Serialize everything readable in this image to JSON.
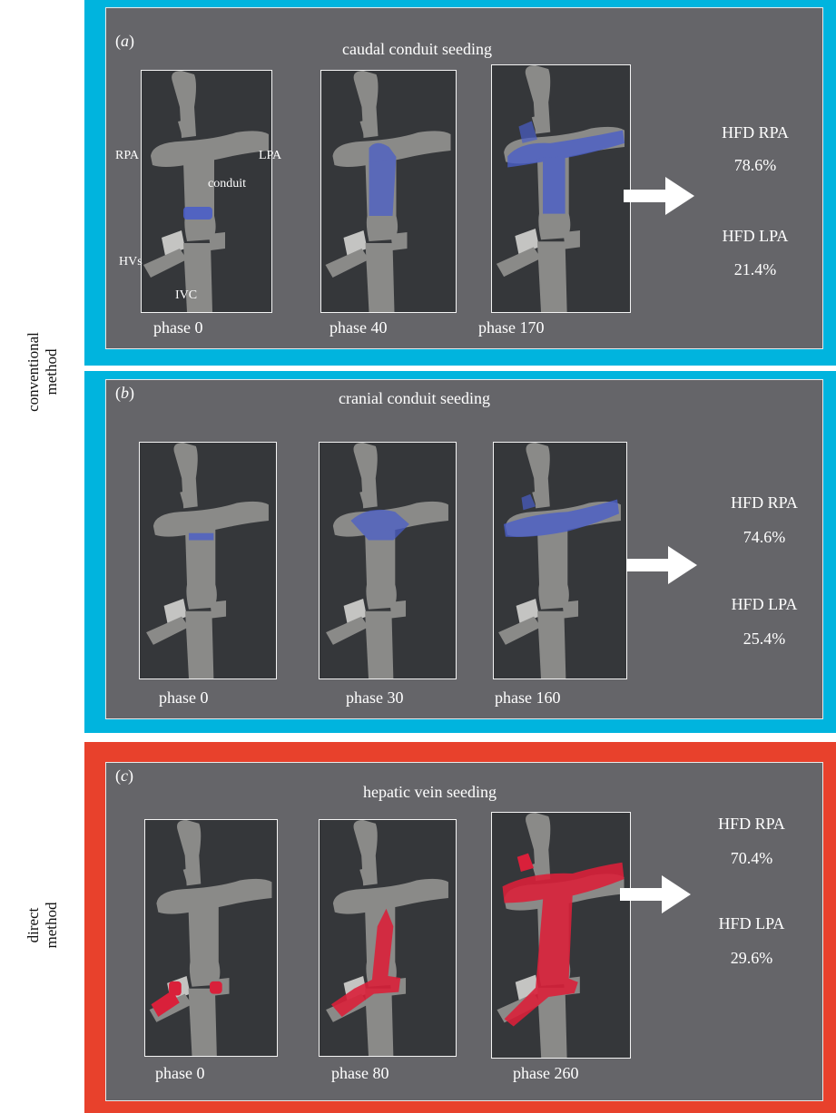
{
  "side_labels": {
    "conventional": [
      "conventional",
      "method"
    ],
    "direct": [
      "direct",
      "method"
    ]
  },
  "panels": [
    {
      "letter": "a",
      "title": "caudal conduit seeding",
      "phases": [
        "phase 0",
        "phase 40",
        "phase 170"
      ],
      "hfd_rpa_label": "HFD RPA",
      "hfd_rpa_value": "78.6%",
      "hfd_lpa_label": "HFD LPA",
      "hfd_lpa_value": "21.4%",
      "anatomy": {
        "rpa": "RPA",
        "lpa": "LPA",
        "conduit": "conduit",
        "hvs": "HVs",
        "ivc": "IVC"
      },
      "particle_color": "#4a5ec8"
    },
    {
      "letter": "b",
      "title": "cranial conduit seeding",
      "phases": [
        "phase 0",
        "phase 30",
        "phase 160"
      ],
      "hfd_rpa_label": "HFD RPA",
      "hfd_rpa_value": "74.6%",
      "hfd_lpa_label": "HFD LPA",
      "hfd_lpa_value": "25.4%",
      "particle_color": "#4a5ec8"
    },
    {
      "letter": "c",
      "title": "hepatic vein seeding",
      "phases": [
        "phase 0",
        "phase 80",
        "phase 260"
      ],
      "hfd_rpa_label": "HFD RPA",
      "hfd_rpa_value": "70.4%",
      "hfd_lpa_label": "HFD LPA",
      "hfd_lpa_value": "29.6%",
      "particle_color": "#d9203a"
    }
  ],
  "colors": {
    "conventional_border": "#00b4de",
    "direct_border": "#e8412c",
    "panel_bg": "#656569",
    "frame_bg": "#35373a",
    "vessel": "#8a8a88"
  }
}
